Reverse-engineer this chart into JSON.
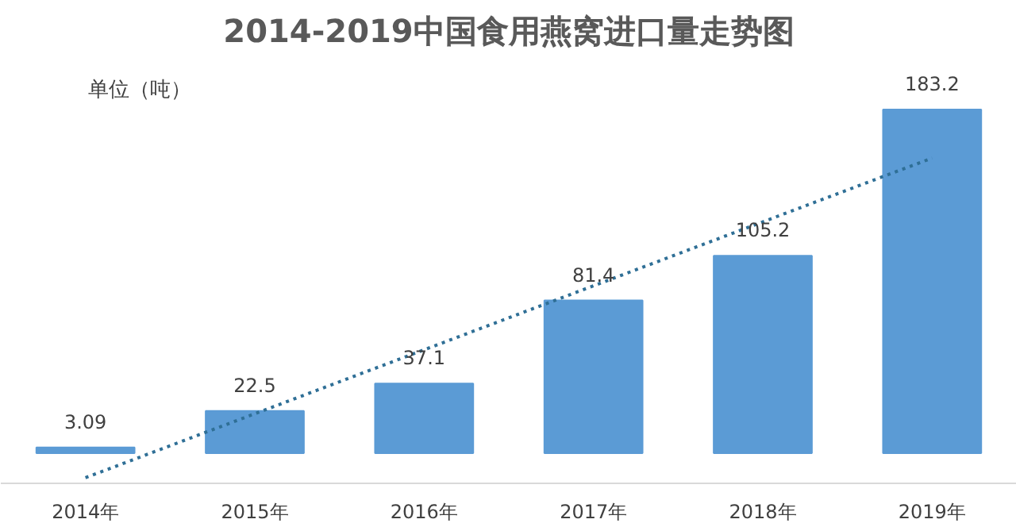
{
  "chart_data": {
    "type": "bar",
    "title": "2014-2019中国食用燕窝进口量走势图",
    "annotations": [
      "单位（吨）"
    ],
    "categories": [
      "2014年",
      "2015年",
      "2016年",
      "2017年",
      "2018年",
      "2019年"
    ],
    "grid": false,
    "series": [
      {
        "color": "#5b9bd5",
        "values": [
          3.09,
          22.5,
          37.1,
          81.4,
          105.2,
          183.2
        ],
        "value_labels": [
          "3.09",
          "22.5",
          "37.1",
          "81.4",
          "105.2",
          "183.2"
        ]
      },
      {
        "type": "line",
        "color": "#2f6f96",
        "line_style": "dotted",
        "marker": "none",
        "values": [
          -13.1,
          21.0,
          55.1,
          89.2,
          123.3,
          157.3
        ]
      }
    ]
  }
}
